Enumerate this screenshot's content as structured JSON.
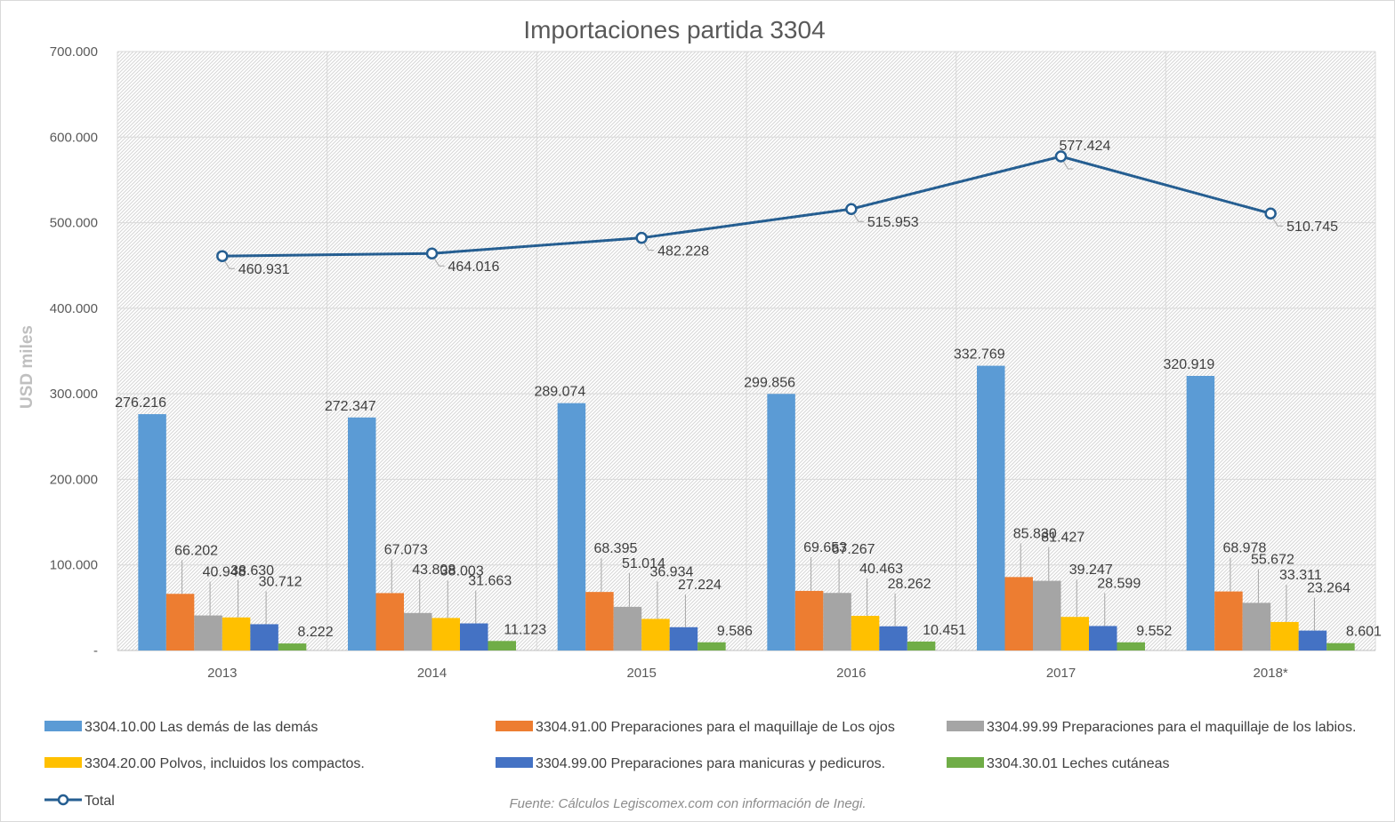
{
  "chart_data": {
    "type": "bar",
    "title": "Importaciones partida 3304",
    "ylabel": "USD miles",
    "ylim": [
      0,
      700000
    ],
    "yticks": [
      0,
      100000,
      200000,
      300000,
      400000,
      500000,
      600000,
      700000
    ],
    "ytick_labels": [
      "-",
      "100.000",
      "200.000",
      "300.000",
      "400.000",
      "500.000",
      "600.000",
      "700.000"
    ],
    "categories": [
      "2013",
      "2014",
      "2015",
      "2016",
      "2017",
      "2018*"
    ],
    "grid": true,
    "legend_position": "bottom",
    "series": [
      {
        "name": "3304.10.00 Las demás de las demás",
        "color": "#5b9bd5",
        "values": [
          276216,
          272347,
          289074,
          299856,
          332769,
          320919
        ],
        "labels": [
          "276.216",
          "272.347",
          "289.074",
          "299.856",
          "332.769",
          "320.919"
        ]
      },
      {
        "name": "3304.91.00  Preparaciones para el maquillaje de Los ojos",
        "color": "#ed7d31",
        "values": [
          66202,
          67073,
          68395,
          69653,
          85830,
          68978
        ],
        "labels": [
          "66.202",
          "67.073",
          "68.395",
          "69.653",
          "85.830",
          "68.978"
        ]
      },
      {
        "name": "3304.99.99 Preparaciones para el maquillaje de los labios.",
        "color": "#a5a5a5",
        "values": [
          40948,
          43808,
          51014,
          67267,
          81427,
          55672
        ],
        "labels": [
          "40.948",
          "43.808",
          "51.014",
          "67.267",
          "81.427",
          "55.672"
        ]
      },
      {
        "name": "3304.20.00 Polvos, incluidos los compactos.",
        "color": "#ffc000",
        "values": [
          38630,
          38003,
          36934,
          40463,
          39247,
          33311
        ],
        "labels": [
          "38.630",
          "38.003",
          "36.934",
          "40.463",
          "39.247",
          "33.311"
        ]
      },
      {
        "name": "3304.99.00 Preparaciones para manicuras y pedicuros.",
        "color": "#4472c4",
        "values": [
          30712,
          31663,
          27224,
          28262,
          28599,
          23264
        ],
        "labels": [
          "30.712",
          "31.663",
          "27.224",
          "28.262",
          "28.599",
          "23.264"
        ]
      },
      {
        "name": "3304.30.01 Leches cutáneas",
        "color": "#70ad47",
        "values": [
          8222,
          11123,
          9586,
          10451,
          9552,
          8601
        ],
        "labels": [
          "8.222",
          "11.123",
          "9.586",
          "10.451",
          "9.552",
          "8.601"
        ]
      }
    ],
    "line_series": {
      "name": "Total",
      "type": "line",
      "color": "#255e91",
      "values": [
        460931,
        464016,
        482228,
        515953,
        577424,
        510745
      ],
      "labels": [
        "460.931",
        "464.016",
        "482.228",
        "515.953",
        "577.424",
        "510.745"
      ]
    },
    "source_note": "Fuente: Cálculos Legiscomex.com con información de Inegi."
  }
}
